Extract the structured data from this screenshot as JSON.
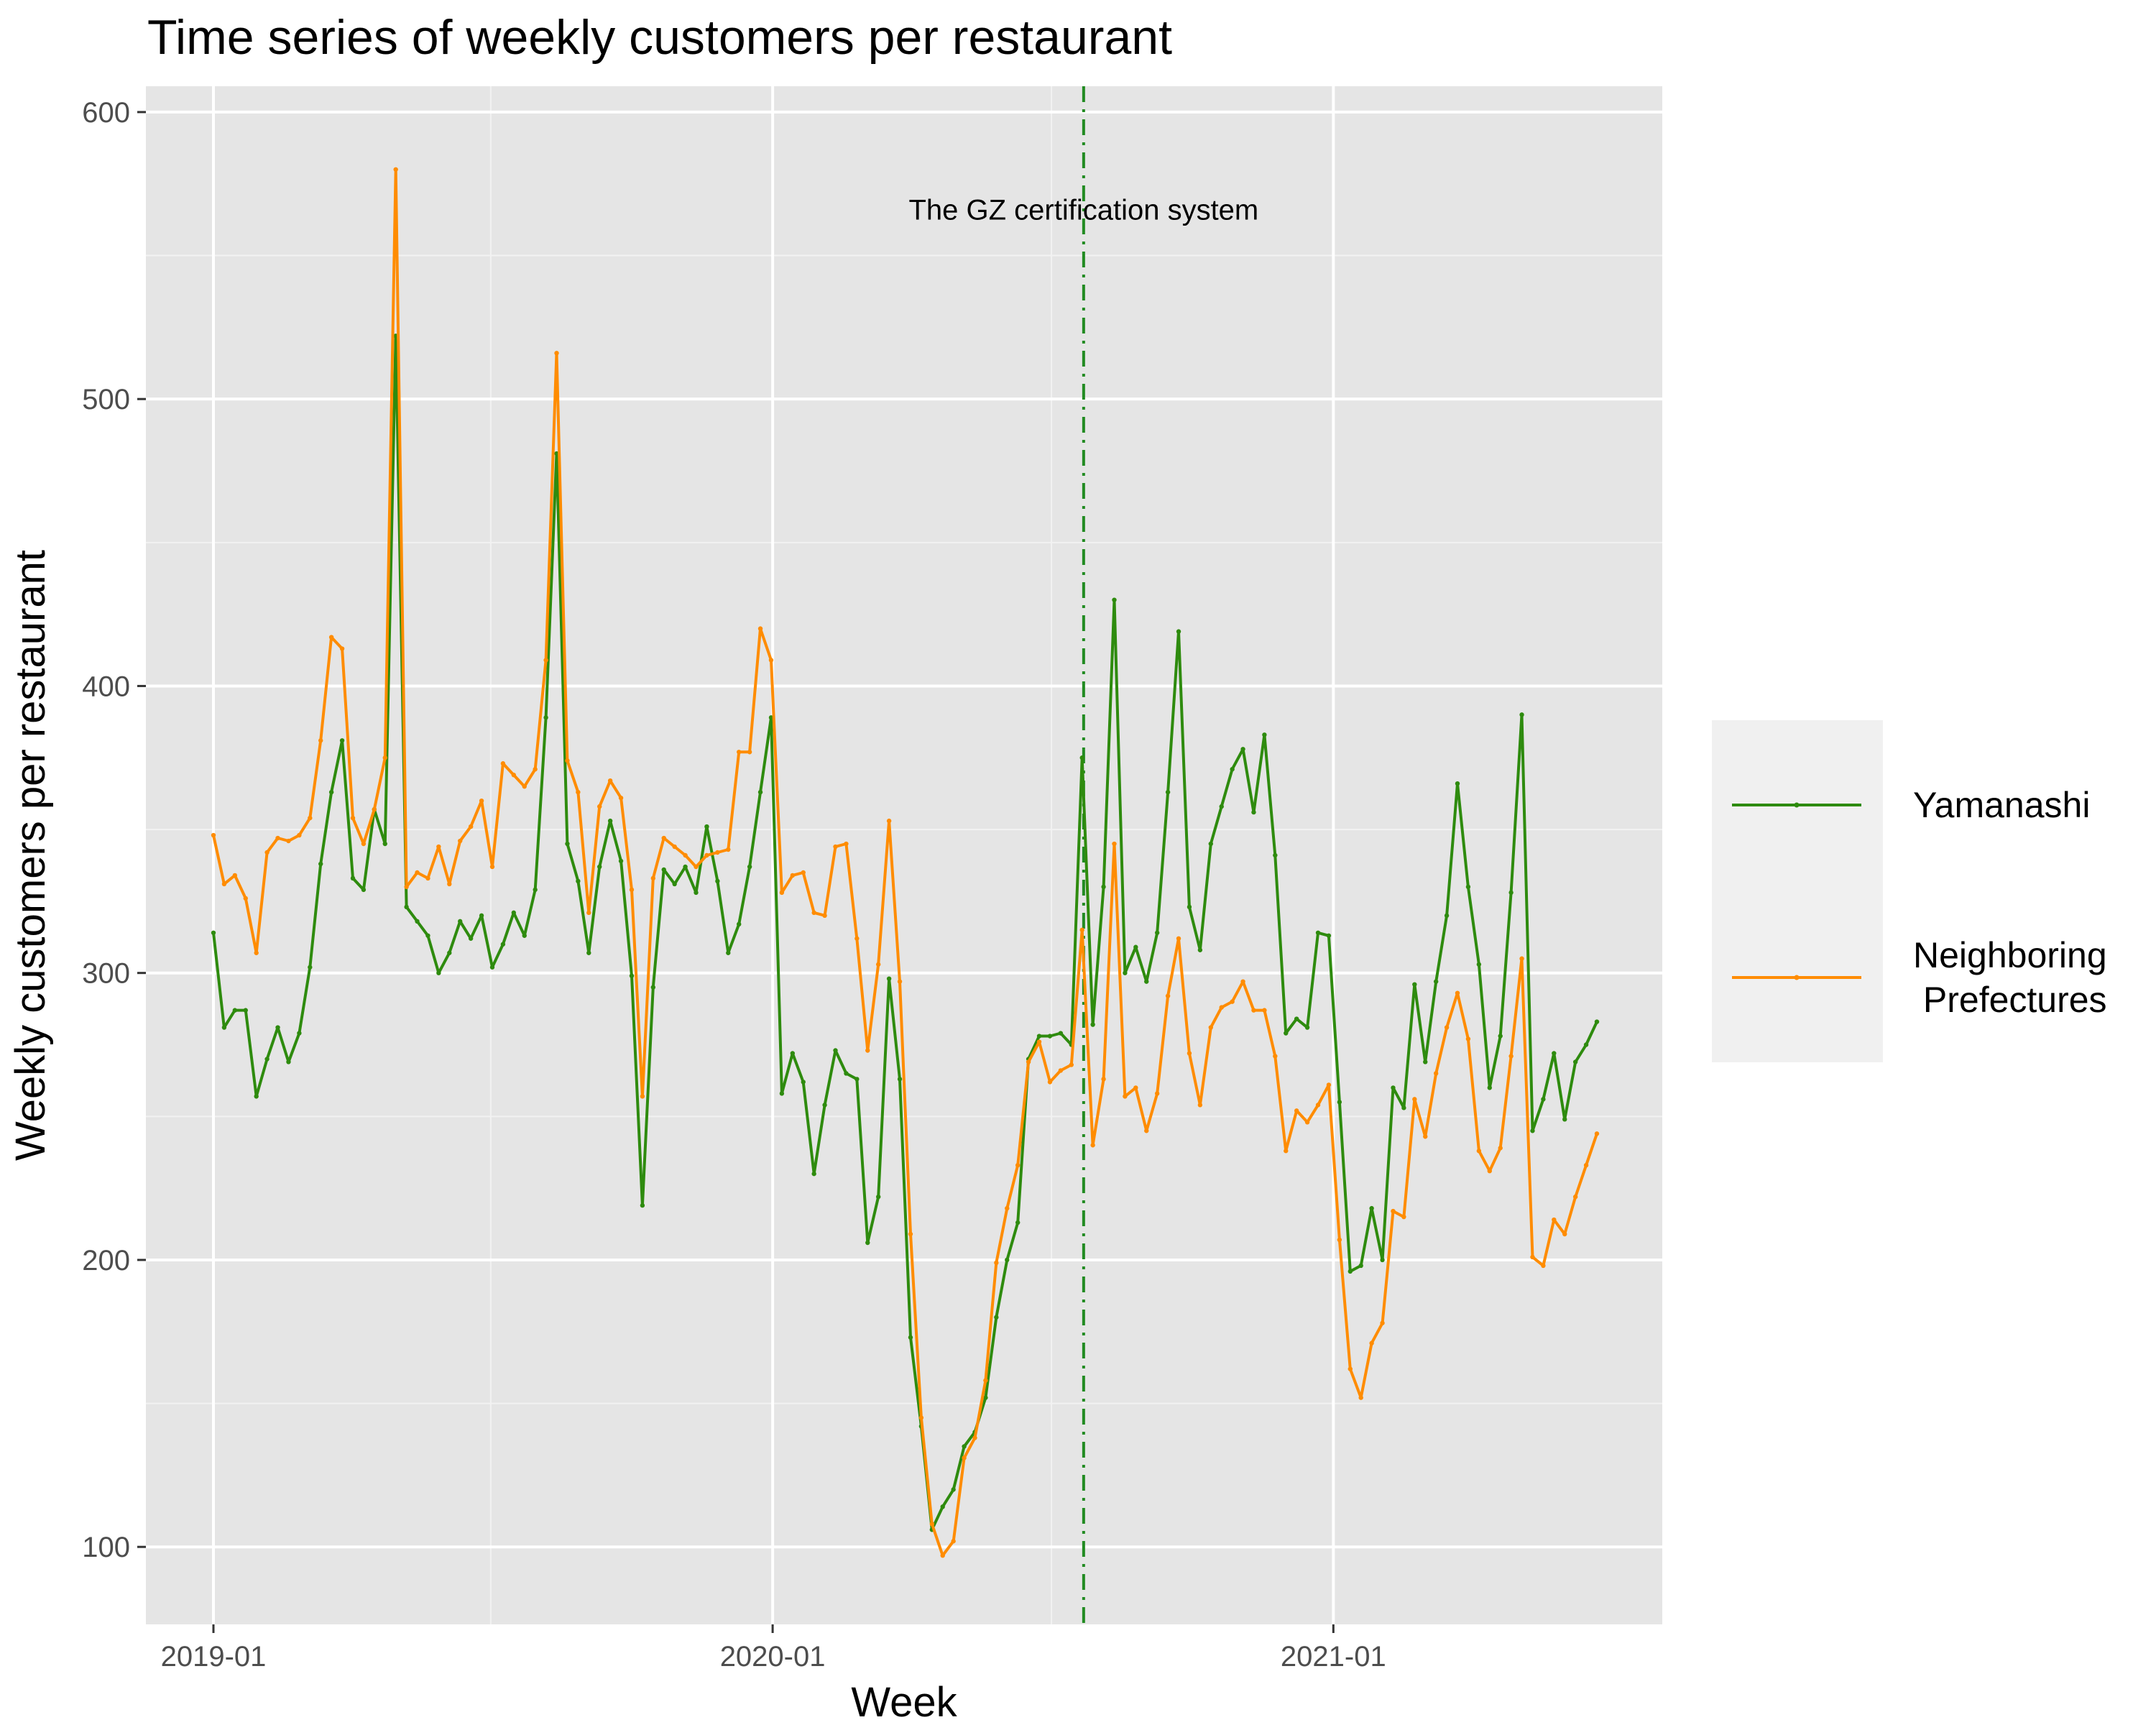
{
  "chart_data": {
    "type": "line",
    "title": "Time series of weekly customers per restaurant",
    "xlabel": "Week",
    "ylabel": "Weekly customers per restaurant",
    "x_start": "2019-01-01",
    "x_end": "2021-06-07",
    "x_ticks": [
      {
        "label": "2019-01",
        "date": "2019-01-01"
      },
      {
        "label": "2020-01",
        "date": "2020-01-01"
      },
      {
        "label": "2021-01",
        "date": "2021-01-01"
      }
    ],
    "x_minor_ticks": [
      "2019-07-01",
      "2020-07-01"
    ],
    "ylim": [
      73,
      609
    ],
    "y_ticks": [
      100,
      200,
      300,
      400,
      500,
      600
    ],
    "grid": true,
    "legend_position": "right",
    "annotation": {
      "text": "The GZ certification system",
      "y": 566,
      "date": "2020-07-22"
    },
    "vline": {
      "date": "2020-07-22",
      "color": "#228b22",
      "style": "dash-dot"
    },
    "series": [
      {
        "name": "Yamanashi",
        "color": "#2e8b0e",
        "values": [
          314,
          281,
          287,
          287,
          257,
          270,
          281,
          269,
          279,
          302,
          338,
          363,
          381,
          333,
          329,
          357,
          345,
          522,
          323,
          318,
          313,
          300,
          307,
          318,
          312,
          320,
          302,
          310,
          321,
          313,
          329,
          389,
          481,
          345,
          332,
          307,
          337,
          353,
          339,
          299,
          219,
          295,
          336,
          331,
          337,
          328,
          351,
          332,
          307,
          317,
          337,
          363,
          389,
          258,
          272,
          262,
          230,
          254,
          273,
          265,
          263,
          206,
          222,
          298,
          263,
          173,
          142,
          106,
          114,
          120,
          135,
          140,
          152,
          180,
          200,
          213,
          270,
          278,
          278,
          279,
          275,
          375,
          282,
          330,
          430,
          300,
          309,
          297,
          314,
          363,
          419,
          323,
          308,
          345,
          358,
          371,
          378,
          356,
          383,
          341,
          279,
          284,
          281,
          314,
          313,
          255,
          196,
          198,
          218,
          200,
          260,
          253,
          296,
          269,
          297,
          320,
          366,
          330,
          303,
          260,
          278,
          328,
          390,
          245,
          256,
          272,
          249,
          269,
          275,
          283
        ]
      },
      {
        "name": "Neighboring\nPrefectures",
        "color": "#ff8c00",
        "values": [
          348,
          331,
          334,
          326,
          307,
          342,
          347,
          346,
          348,
          354,
          381,
          417,
          413,
          354,
          345,
          357,
          375,
          580,
          330,
          335,
          333,
          344,
          331,
          346,
          351,
          360,
          337,
          373,
          369,
          365,
          371,
          409,
          516,
          374,
          363,
          321,
          358,
          367,
          361,
          329,
          257,
          333,
          347,
          344,
          341,
          337,
          341,
          342,
          343,
          377,
          377,
          420,
          409,
          328,
          334,
          335,
          321,
          320,
          344,
          345,
          312,
          273,
          303,
          353,
          297,
          209,
          145,
          108,
          97,
          102,
          131,
          138,
          158,
          199,
          218,
          233,
          269,
          276,
          262,
          266,
          268,
          315,
          240,
          263,
          345,
          257,
          260,
          245,
          258,
          292,
          312,
          272,
          254,
          281,
          288,
          290,
          297,
          287,
          287,
          271,
          238,
          252,
          248,
          254,
          261,
          207,
          162,
          152,
          171,
          178,
          217,
          215,
          256,
          243,
          265,
          281,
          293,
          277,
          238,
          231,
          239,
          271,
          305,
          201,
          198,
          214,
          209,
          222,
          233,
          244
        ]
      }
    ]
  }
}
